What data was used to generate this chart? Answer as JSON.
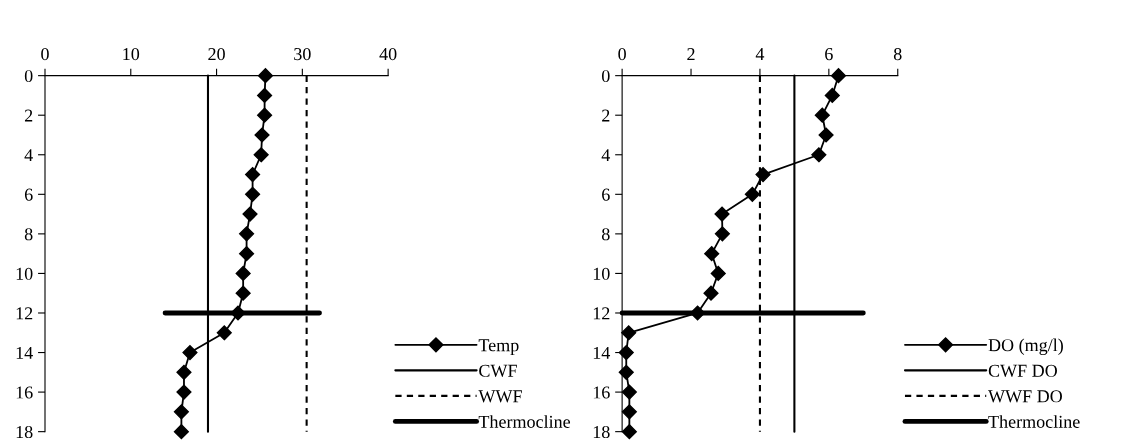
{
  "chart_data": [
    {
      "type": "line",
      "ylim": [
        18,
        0
      ],
      "yticks": [
        0,
        2,
        4,
        6,
        8,
        10,
        12,
        14,
        16,
        18
      ],
      "xlim": [
        0,
        40
      ],
      "xticks": [
        0,
        10,
        20,
        30,
        40
      ],
      "legend": "bottom right",
      "grid": false,
      "series": [
        {
          "name": "Temp",
          "color": "#000000",
          "marker": "diamond",
          "line_style": "solid",
          "x": [
            25.7,
            25.6,
            25.6,
            25.3,
            25.2,
            24.2,
            24.2,
            23.9,
            23.5,
            23.5,
            23.1,
            23.1,
            22.5,
            20.9,
            16.9,
            16.2,
            16.2,
            15.9,
            15.9
          ],
          "values": [
            0,
            1,
            2,
            3,
            4,
            5,
            6,
            7,
            8,
            9,
            10,
            11,
            12,
            13,
            14,
            15,
            16,
            17,
            18
          ]
        },
        {
          "name": "CWF",
          "color": "#000000",
          "line_style": "solid",
          "x": [
            19,
            19
          ],
          "values": [
            0,
            18
          ]
        },
        {
          "name": "WWF",
          "color": "#000000",
          "line_style": "dashed",
          "x": [
            30.5,
            30.5
          ],
          "values": [
            0,
            18
          ]
        },
        {
          "name": "Thermocline",
          "color": "#000000",
          "line_style": "solid",
          "x": [
            14,
            32
          ],
          "values": [
            12,
            12
          ]
        }
      ]
    },
    {
      "type": "line",
      "ylim": [
        18,
        0
      ],
      "yticks": [
        0,
        2,
        4,
        6,
        8,
        10,
        12,
        14,
        16,
        18
      ],
      "xlim": [
        0,
        8
      ],
      "xticks": [
        0,
        2,
        4,
        6,
        8
      ],
      "legend": "bottom right",
      "grid": false,
      "series": [
        {
          "name": "DO (mg/l)",
          "color": "#000000",
          "marker": "diamond",
          "line_style": "solid",
          "x": [
            6.28,
            6.1,
            5.81,
            5.92,
            5.71,
            4.09,
            3.78,
            2.9,
            2.91,
            2.6,
            2.79,
            2.58,
            2.19,
            0.19,
            0.12,
            0.12,
            0.21,
            0.21,
            0.21
          ],
          "values": [
            0,
            1,
            2,
            3,
            4,
            5,
            6,
            7,
            8,
            9,
            10,
            11,
            12,
            13,
            14,
            15,
            16,
            17,
            18
          ]
        },
        {
          "name": "CWF DO",
          "color": "#000000",
          "line_style": "solid",
          "x": [
            5,
            5
          ],
          "values": [
            0,
            18
          ]
        },
        {
          "name": "WWF DO",
          "color": "#000000",
          "line_style": "dashed",
          "x": [
            4,
            4
          ],
          "values": [
            0,
            18
          ]
        },
        {
          "name": "Thermocline",
          "color": "#000000",
          "line_style": "solid",
          "x": [
            0,
            7
          ],
          "values": [
            12,
            12
          ]
        }
      ]
    }
  ]
}
